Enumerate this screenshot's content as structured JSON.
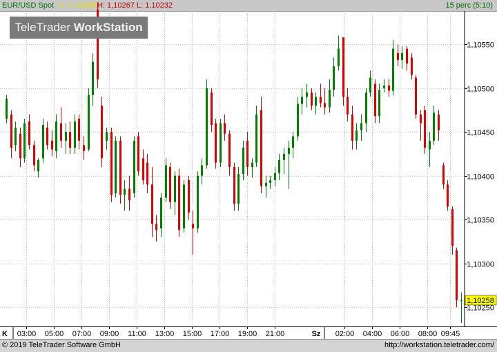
{
  "header": {
    "instrument": "EUR/USD Spot",
    "close_label": "C: 1,10258",
    "high_label": "H: 1,10267",
    "low_label": "L: 1,10232",
    "interval": "15 perc (5:10)"
  },
  "logo": {
    "text_a": "TeleTrader",
    "text_b": "WorkStation"
  },
  "footer": {
    "copyright": "© 2019 TeleTrader Software GmbH",
    "url": "http://workstation.teletrader.com/"
  },
  "last_price_label": "1,10258",
  "colors": {
    "up": "#008000",
    "down": "#e00000",
    "grid": "#bdbdbd",
    "header_green": "#007000",
    "close_yellow": "#e0e000",
    "hl_red": "#cc0000",
    "price_tag": "#ffff00"
  },
  "chart_data": {
    "type": "candlestick",
    "y_ticks": [
      "1,10550",
      "1,10500",
      "1,10450",
      "1,10400",
      "1,10350",
      "1,10300",
      "1,10250"
    ],
    "ylim": [
      1.10228,
      1.10588
    ],
    "x_day_labels": [
      "K",
      "Sz"
    ],
    "x_ticks": [
      "03:00",
      "05:00",
      "07:00",
      "09:00",
      "11:00",
      "13:00",
      "15:00",
      "17:00",
      "19:00",
      "21:00",
      "02:00",
      "04:00",
      "06:00",
      "08:00",
      "09:45"
    ],
    "candles": [
      {
        "o": 1.10465,
        "h": 1.10492,
        "l": 1.1046,
        "c": 1.10488
      },
      {
        "o": 1.1047,
        "h": 1.10475,
        "l": 1.1042,
        "c": 1.10432
      },
      {
        "o": 1.10435,
        "h": 1.10462,
        "l": 1.10428,
        "c": 1.10455
      },
      {
        "o": 1.10448,
        "h": 1.10455,
        "l": 1.1041,
        "c": 1.1042
      },
      {
        "o": 1.1042,
        "h": 1.10465,
        "l": 1.10415,
        "c": 1.1046
      },
      {
        "o": 1.10462,
        "h": 1.1047,
        "l": 1.1043,
        "c": 1.10435
      },
      {
        "o": 1.10435,
        "h": 1.1044,
        "l": 1.10405,
        "c": 1.10412
      },
      {
        "o": 1.10405,
        "h": 1.1042,
        "l": 1.10398,
        "c": 1.10418
      },
      {
        "o": 1.1042,
        "h": 1.10465,
        "l": 1.10415,
        "c": 1.10458
      },
      {
        "o": 1.10455,
        "h": 1.10462,
        "l": 1.1043,
        "c": 1.10435
      },
      {
        "o": 1.1044,
        "h": 1.10452,
        "l": 1.10422,
        "c": 1.1043
      },
      {
        "o": 1.10428,
        "h": 1.1047,
        "l": 1.1042,
        "c": 1.10462
      },
      {
        "o": 1.1046,
        "h": 1.10478,
        "l": 1.10432,
        "c": 1.1044
      },
      {
        "o": 1.1044,
        "h": 1.1046,
        "l": 1.10425,
        "c": 1.1045
      },
      {
        "o": 1.1045,
        "h": 1.10462,
        "l": 1.10425,
        "c": 1.10432
      },
      {
        "o": 1.10432,
        "h": 1.1047,
        "l": 1.10425,
        "c": 1.10462
      },
      {
        "o": 1.10465,
        "h": 1.1047,
        "l": 1.1043,
        "c": 1.1044
      },
      {
        "o": 1.10435,
        "h": 1.10445,
        "l": 1.10418,
        "c": 1.10428
      },
      {
        "o": 1.1043,
        "h": 1.105,
        "l": 1.10428,
        "c": 1.10492
      },
      {
        "o": 1.10492,
        "h": 1.1054,
        "l": 1.1048,
        "c": 1.1053
      },
      {
        "o": 1.1059,
        "h": 1.10598,
        "l": 1.105,
        "c": 1.1051
      },
      {
        "o": 1.1048,
        "h": 1.1049,
        "l": 1.1041,
        "c": 1.1042
      },
      {
        "o": 1.1044,
        "h": 1.10455,
        "l": 1.1043,
        "c": 1.1045
      },
      {
        "o": 1.1045,
        "h": 1.10455,
        "l": 1.1037,
        "c": 1.10378
      },
      {
        "o": 1.1038,
        "h": 1.10445,
        "l": 1.10375,
        "c": 1.1044
      },
      {
        "o": 1.1044,
        "h": 1.10445,
        "l": 1.10368,
        "c": 1.10378
      },
      {
        "o": 1.10378,
        "h": 1.10395,
        "l": 1.1036,
        "c": 1.10385
      },
      {
        "o": 1.10385,
        "h": 1.104,
        "l": 1.1036,
        "c": 1.10372
      },
      {
        "o": 1.1038,
        "h": 1.10445,
        "l": 1.10375,
        "c": 1.1044
      },
      {
        "o": 1.10445,
        "h": 1.1045,
        "l": 1.104,
        "c": 1.10405
      },
      {
        "o": 1.1042,
        "h": 1.1043,
        "l": 1.1039,
        "c": 1.10395
      },
      {
        "o": 1.10415,
        "h": 1.10425,
        "l": 1.1038,
        "c": 1.1039
      },
      {
        "o": 1.1039,
        "h": 1.1041,
        "l": 1.1033,
        "c": 1.10345
      },
      {
        "o": 1.10345,
        "h": 1.10355,
        "l": 1.10325,
        "c": 1.10338
      },
      {
        "o": 1.1034,
        "h": 1.1038,
        "l": 1.1033,
        "c": 1.10375
      },
      {
        "o": 1.10375,
        "h": 1.1042,
        "l": 1.1037,
        "c": 1.10412
      },
      {
        "o": 1.1041,
        "h": 1.10415,
        "l": 1.10362,
        "c": 1.1037
      },
      {
        "o": 1.1037,
        "h": 1.10405,
        "l": 1.10355,
        "c": 1.104
      },
      {
        "o": 1.104,
        "h": 1.10408,
        "l": 1.1033,
        "c": 1.10338
      },
      {
        "o": 1.1034,
        "h": 1.10395,
        "l": 1.10335,
        "c": 1.1039
      },
      {
        "o": 1.10395,
        "h": 1.104,
        "l": 1.1035,
        "c": 1.10358
      },
      {
        "o": 1.10345,
        "h": 1.1036,
        "l": 1.1031,
        "c": 1.1034
      },
      {
        "o": 1.1034,
        "h": 1.10405,
        "l": 1.10335,
        "c": 1.104
      },
      {
        "o": 1.104,
        "h": 1.1042,
        "l": 1.1039,
        "c": 1.10412
      },
      {
        "o": 1.10412,
        "h": 1.1051,
        "l": 1.10408,
        "c": 1.105
      },
      {
        "o": 1.10495,
        "h": 1.105,
        "l": 1.1045,
        "c": 1.10458
      },
      {
        "o": 1.1046,
        "h": 1.10465,
        "l": 1.10408,
        "c": 1.10415
      },
      {
        "o": 1.10415,
        "h": 1.10465,
        "l": 1.1041,
        "c": 1.1046
      },
      {
        "o": 1.1046,
        "h": 1.1047,
        "l": 1.1044,
        "c": 1.10448
      },
      {
        "o": 1.10448,
        "h": 1.10452,
        "l": 1.104,
        "c": 1.1041
      },
      {
        "o": 1.1041,
        "h": 1.10415,
        "l": 1.1036,
        "c": 1.10368
      },
      {
        "o": 1.10368,
        "h": 1.1041,
        "l": 1.1036,
        "c": 1.10402
      },
      {
        "o": 1.10402,
        "h": 1.1044,
        "l": 1.10395,
        "c": 1.10432
      },
      {
        "o": 1.1044,
        "h": 1.1045,
        "l": 1.104,
        "c": 1.1041
      },
      {
        "o": 1.1041,
        "h": 1.1042,
        "l": 1.10398,
        "c": 1.10415
      },
      {
        "o": 1.10415,
        "h": 1.1048,
        "l": 1.1041,
        "c": 1.1047
      },
      {
        "o": 1.10475,
        "h": 1.1049,
        "l": 1.1038,
        "c": 1.10388
      },
      {
        "o": 1.10388,
        "h": 1.104,
        "l": 1.10375,
        "c": 1.10392
      },
      {
        "o": 1.10392,
        "h": 1.104,
        "l": 1.10385,
        "c": 1.10395
      },
      {
        "o": 1.10395,
        "h": 1.1041,
        "l": 1.10388,
        "c": 1.10403
      },
      {
        "o": 1.10403,
        "h": 1.10425,
        "l": 1.10395,
        "c": 1.10418
      },
      {
        "o": 1.10418,
        "h": 1.10432,
        "l": 1.10402,
        "c": 1.10425
      },
      {
        "o": 1.10425,
        "h": 1.1044,
        "l": 1.10385,
        "c": 1.10432
      },
      {
        "o": 1.10432,
        "h": 1.1045,
        "l": 1.1042,
        "c": 1.10445
      },
      {
        "o": 1.10445,
        "h": 1.1049,
        "l": 1.1044,
        "c": 1.10482
      },
      {
        "o": 1.10482,
        "h": 1.105,
        "l": 1.1047,
        "c": 1.1049
      },
      {
        "o": 1.1049,
        "h": 1.10505,
        "l": 1.10478,
        "c": 1.10495
      },
      {
        "o": 1.10495,
        "h": 1.105,
        "l": 1.10475,
        "c": 1.1048
      },
      {
        "o": 1.1048,
        "h": 1.10495,
        "l": 1.1047,
        "c": 1.1049
      },
      {
        "o": 1.1049,
        "h": 1.10505,
        "l": 1.10478,
        "c": 1.10483
      },
      {
        "o": 1.10483,
        "h": 1.105,
        "l": 1.1047,
        "c": 1.10478
      },
      {
        "o": 1.10478,
        "h": 1.1051,
        "l": 1.10472,
        "c": 1.10498
      },
      {
        "o": 1.10498,
        "h": 1.10535,
        "l": 1.1049,
        "c": 1.10525
      },
      {
        "o": 1.10525,
        "h": 1.1056,
        "l": 1.1052,
        "c": 1.10545
      },
      {
        "o": 1.10558,
        "h": 1.10558,
        "l": 1.1048,
        "c": 1.1049
      },
      {
        "o": 1.1049,
        "h": 1.105,
        "l": 1.10462,
        "c": 1.1047
      },
      {
        "o": 1.1047,
        "h": 1.1048,
        "l": 1.1043,
        "c": 1.1044
      },
      {
        "o": 1.1044,
        "h": 1.1046,
        "l": 1.1043,
        "c": 1.10452
      },
      {
        "o": 1.10452,
        "h": 1.1047,
        "l": 1.1044,
        "c": 1.1046
      },
      {
        "o": 1.1046,
        "h": 1.105,
        "l": 1.1045,
        "c": 1.10495
      },
      {
        "o": 1.10495,
        "h": 1.1052,
        "l": 1.1049,
        "c": 1.10512
      },
      {
        "o": 1.10505,
        "h": 1.1051,
        "l": 1.1046,
        "c": 1.10468
      },
      {
        "o": 1.10468,
        "h": 1.10505,
        "l": 1.1046,
        "c": 1.10498
      },
      {
        "o": 1.105,
        "h": 1.1051,
        "l": 1.10495,
        "c": 1.10503
      },
      {
        "o": 1.10503,
        "h": 1.1051,
        "l": 1.1049,
        "c": 1.10497
      },
      {
        "o": 1.10497,
        "h": 1.10555,
        "l": 1.10492,
        "c": 1.10545
      },
      {
        "o": 1.1054,
        "h": 1.1055,
        "l": 1.10525,
        "c": 1.10532
      },
      {
        "o": 1.10532,
        "h": 1.10548,
        "l": 1.10522,
        "c": 1.1054
      },
      {
        "o": 1.10545,
        "h": 1.10548,
        "l": 1.1052,
        "c": 1.10528
      },
      {
        "o": 1.10535,
        "h": 1.1054,
        "l": 1.1051,
        "c": 1.10515
      },
      {
        "o": 1.10512,
        "h": 1.10515,
        "l": 1.10465,
        "c": 1.1047
      },
      {
        "o": 1.1047,
        "h": 1.10475,
        "l": 1.1044,
        "c": 1.1046
      },
      {
        "o": 1.10475,
        "h": 1.1048,
        "l": 1.10425,
        "c": 1.10432
      },
      {
        "o": 1.1043,
        "h": 1.1045,
        "l": 1.1041,
        "c": 1.1044
      },
      {
        "o": 1.1044,
        "h": 1.1048,
        "l": 1.10435,
        "c": 1.10472
      },
      {
        "o": 1.1047,
        "h": 1.10475,
        "l": 1.1044,
        "c": 1.10452
      },
      {
        "o": 1.10412,
        "h": 1.10415,
        "l": 1.10385,
        "c": 1.1039
      },
      {
        "o": 1.1039,
        "h": 1.10395,
        "l": 1.1036,
        "c": 1.10365
      },
      {
        "o": 1.10362,
        "h": 1.10365,
        "l": 1.1031,
        "c": 1.1032
      },
      {
        "o": 1.10315,
        "h": 1.10318,
        "l": 1.1025,
        "c": 1.10258
      },
      {
        "o": 1.10258,
        "h": 1.10267,
        "l": 1.10232,
        "c": 1.10258
      }
    ]
  }
}
